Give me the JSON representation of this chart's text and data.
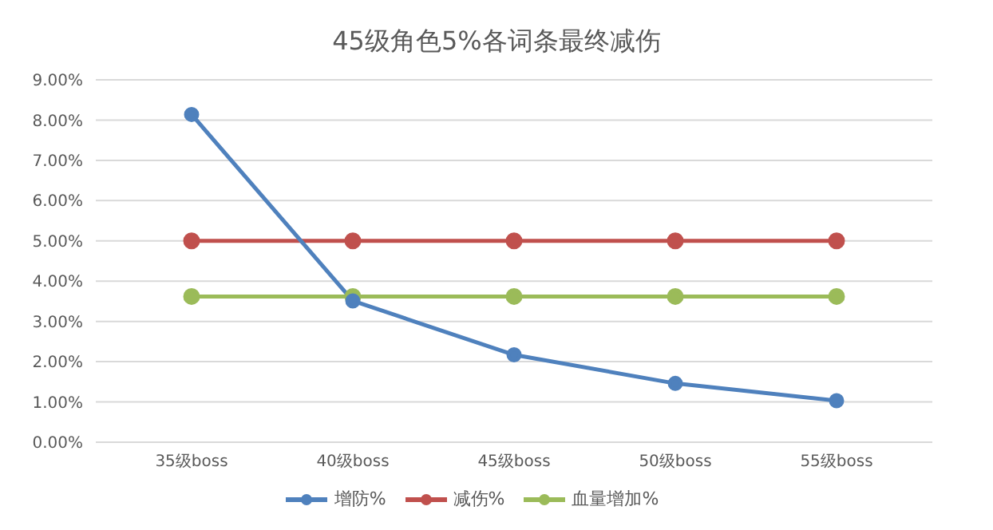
{
  "chart_data": {
    "type": "line",
    "title": "45级角色5%各词条最终减伤",
    "categories": [
      "35级boss",
      "40级boss",
      "45级boss",
      "50级boss",
      "55级boss"
    ],
    "series": [
      {
        "name": "增防%",
        "color": "#4f81bd",
        "values": [
          8.14,
          3.51,
          2.17,
          1.46,
          1.03
        ]
      },
      {
        "name": "减伤%",
        "color": "#c0504d",
        "values": [
          5.0,
          5.0,
          5.0,
          5.0,
          5.0
        ]
      },
      {
        "name": "血量增加%",
        "color": "#9bbb59",
        "values": [
          3.62,
          3.62,
          3.62,
          3.62,
          3.62
        ]
      }
    ],
    "ylim": [
      0,
      9
    ],
    "yticks": [
      {
        "value": 0,
        "label": "0.00%"
      },
      {
        "value": 1,
        "label": "1.00%"
      },
      {
        "value": 2,
        "label": "2.00%"
      },
      {
        "value": 3,
        "label": "3.00%"
      },
      {
        "value": 4,
        "label": "4.00%"
      },
      {
        "value": 5,
        "label": "5.00%"
      },
      {
        "value": 6,
        "label": "6.00%"
      },
      {
        "value": 7,
        "label": "7.00%"
      },
      {
        "value": 8,
        "label": "8.00%"
      },
      {
        "value": 9,
        "label": "9.00%"
      }
    ],
    "grid": "y",
    "legend": "bottom",
    "marker": "circle",
    "line_style": "solid"
  }
}
